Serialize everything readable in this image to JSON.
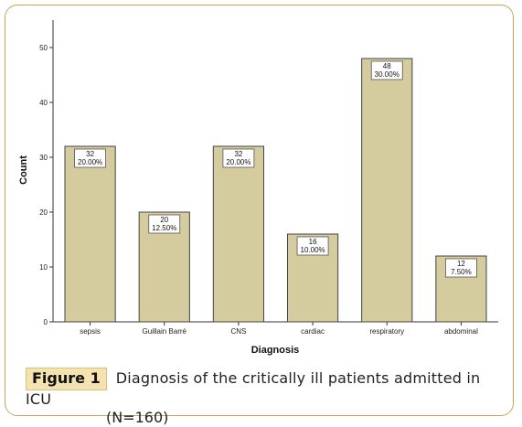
{
  "figure": {
    "label": "Figure 1",
    "caption_line1": "Diagnosis of the critically ill patients admitted in ICU",
    "caption_line2": "(N=160)"
  },
  "colors": {
    "bar_fill": "#d4cb9e",
    "bar_stroke": "#444444",
    "frame": "#c9a45a",
    "caption_bg": "#f4e3b0"
  },
  "chart_data": {
    "type": "bar",
    "xlabel": "Diagnosis",
    "ylabel": "Count",
    "ylim": [
      0,
      55
    ],
    "yticks": [
      0,
      10,
      20,
      30,
      40,
      50
    ],
    "categories": [
      "sepsis",
      "Guillain Barré",
      "CNS",
      "cardiac",
      "respiratory",
      "abdominal"
    ],
    "values": [
      32,
      20,
      32,
      16,
      48,
      12
    ],
    "data_labels": [
      [
        "32",
        "20.00%"
      ],
      [
        "20",
        "12.50%"
      ],
      [
        "32",
        "20.00%"
      ],
      [
        "16",
        "10.00%"
      ],
      [
        "48",
        "30.00%"
      ],
      [
        "12",
        "7.50%"
      ]
    ],
    "grid": false
  }
}
